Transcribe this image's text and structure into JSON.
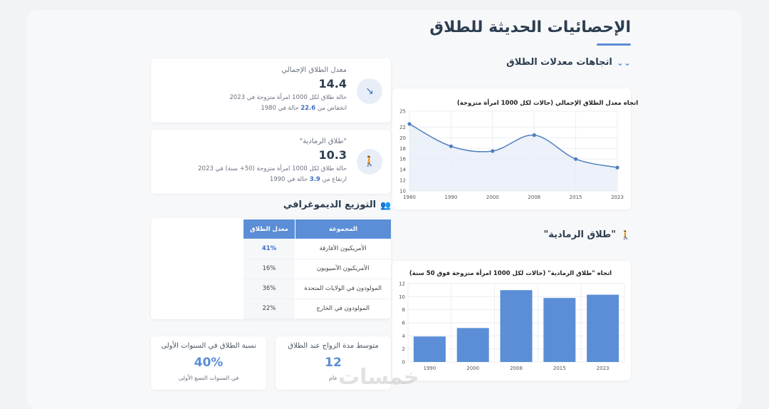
{
  "page": {
    "title": "الإحصائيات الحديثة للطلاق",
    "watermark": "خمسات"
  },
  "sections": {
    "trends": "اتجاهات معدلات الطلاق",
    "gray": "\"طلاق الرمادية\"",
    "demo": "التوزيع الديموغرافي"
  },
  "stats": [
    {
      "icon": "trend-down-icon",
      "label": "معدل الطلاق الإجمالي",
      "value": "14.4",
      "desc1": "حالة طلاق لكل 1000 امرأة متزوجة في 2023",
      "desc2_prefix": "انخفاض من ",
      "desc2_num": "22.6",
      "desc2_suffix": " حالة في 1980"
    },
    {
      "icon": "elderly-icon",
      "label": "\"طلاق الرمادية\"",
      "value": "10.3",
      "desc1": "حالة طلاق لكل 1000 امرأة متزوجة (50+ سنة) في 2023",
      "desc2_prefix": "ارتفاع من ",
      "desc2_num": "3.9",
      "desc2_suffix": " حالة في 1990"
    }
  ],
  "table": {
    "headers": [
      "المجموعة",
      "معدل الطلاق"
    ],
    "rows": [
      {
        "group": "الأمريكيون الأفارقة",
        "rate": "41%"
      },
      {
        "group": "الأمريكيون الآسيويون",
        "rate": "16%"
      },
      {
        "group": "المولودون في الولايات المتحدة",
        "rate": "36%"
      },
      {
        "group": "المولودون في الخارج",
        "rate": "22%"
      }
    ]
  },
  "mini": [
    {
      "label": "متوسط مدة الزواج عند الطلاق",
      "value": "12",
      "sub": "عام"
    },
    {
      "label": "نسبة الطلاق في السنوات الأولى",
      "value": "40%",
      "sub": "في السنوات التسع الأولى"
    }
  ],
  "colors": {
    "accent": "#5b8ed6",
    "line": "#4f7fbf",
    "fill": "#e7eef9"
  },
  "chart_data": [
    {
      "type": "line",
      "title": "اتجاه معدل الطلاق الإجمالي (حالات لكل 1000 امرأة متزوجة)",
      "x": [
        "1980",
        "1990",
        "2000",
        "2008",
        "2015",
        "2023"
      ],
      "values": [
        22.6,
        18.4,
        17.5,
        20.5,
        16.0,
        14.4
      ],
      "ylim": [
        10,
        25
      ],
      "yticks": [
        10,
        12,
        14,
        16,
        18,
        20,
        22,
        25
      ],
      "grid": true
    },
    {
      "type": "bar",
      "title": "اتجاه \"طلاق الرمادية\" (حالات لكل 1000 امرأة متزوجة فوق 50 سنة)",
      "categories": [
        "1990",
        "2000",
        "2008",
        "2015",
        "2023"
      ],
      "values": [
        3.9,
        5.2,
        11.0,
        9.8,
        10.3
      ],
      "ylim": [
        0,
        12
      ],
      "yticks": [
        0,
        2,
        4,
        6,
        8,
        10,
        12
      ],
      "grid": true
    }
  ]
}
